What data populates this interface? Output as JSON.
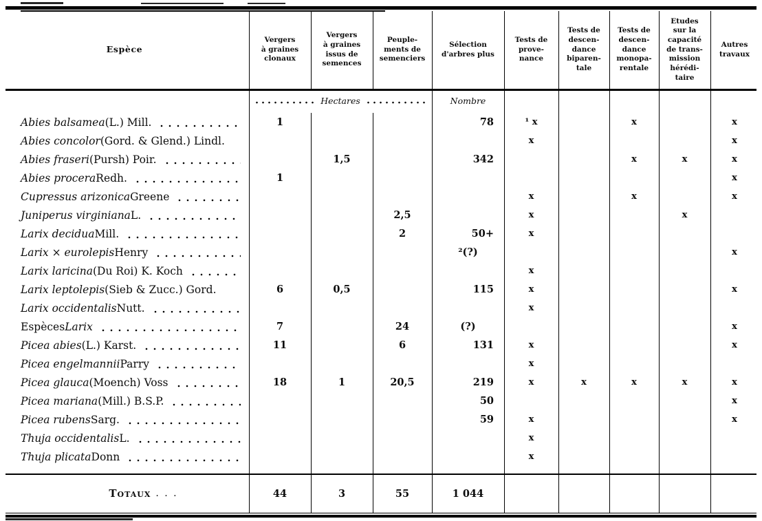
{
  "table": {
    "columns": [
      {
        "key": "espece",
        "label": "Espèce"
      },
      {
        "key": "vgc",
        "label": "Vergers\nà graines\nclonaux"
      },
      {
        "key": "vgs",
        "label": "Vergers\nà graines\nissus de\nsemences"
      },
      {
        "key": "ps",
        "label": "Peuple-\nments de\nsemenciers"
      },
      {
        "key": "sap",
        "label": "Sélection\nd'arbres plus"
      },
      {
        "key": "tp",
        "label": "Tests de\nprove-\nnance"
      },
      {
        "key": "tdb",
        "label": "Tests de\ndescen-\ndance\nbiparen-\ntale"
      },
      {
        "key": "tdm",
        "label": "Tests de\ndescen-\ndance\nmonopa-\nrentale"
      },
      {
        "key": "ect",
        "label": "Etudes\nsur la\ncapacité\nde trans-\nmission\nhérédi-\ntaire"
      },
      {
        "key": "at",
        "label": "Autres\ntravaux"
      }
    ],
    "subheader": {
      "hectares": "Hectares",
      "nombre": "Nombre"
    },
    "rows": [
      {
        "prefix": "",
        "italic": "Abies balsamea",
        "suffix": " (L.) Mill.",
        "leader": true,
        "vgc": "1",
        "vgs": "",
        "ps": "",
        "sap": "78",
        "tp": "¹ x",
        "tdb": "",
        "tdm": "x",
        "ect": "",
        "at": "x"
      },
      {
        "prefix": "",
        "italic": "Abies concolor",
        "suffix": " (Gord. & Glend.) Lindl.",
        "leader": false,
        "vgc": "",
        "vgs": "",
        "ps": "",
        "sap": "",
        "tp": "x",
        "tdb": "",
        "tdm": "",
        "ect": "",
        "at": "x"
      },
      {
        "prefix": "",
        "italic": "Abies fraseri",
        "suffix": " (Pursh) Poir.",
        "leader": true,
        "vgc": "",
        "vgs": "1,5",
        "ps": "",
        "sap": "342",
        "tp": "",
        "tdb": "",
        "tdm": "x",
        "ect": "x",
        "at": "x"
      },
      {
        "prefix": "",
        "italic": "Abies procera",
        "suffix": " Redh.",
        "leader": true,
        "vgc": "1",
        "vgs": "",
        "ps": "",
        "sap": "",
        "tp": "",
        "tdb": "",
        "tdm": "",
        "ect": "",
        "at": "x"
      },
      {
        "prefix": "",
        "italic": "Cupressus arizonica",
        "suffix": " Greene",
        "leader": true,
        "vgc": "",
        "vgs": "",
        "ps": "",
        "sap": "",
        "tp": "x",
        "tdb": "",
        "tdm": "x",
        "ect": "",
        "at": "x"
      },
      {
        "prefix": "",
        "italic": "Juniperus virginiana",
        "suffix": " L.",
        "leader": true,
        "vgc": "",
        "vgs": "",
        "ps": "2,5",
        "sap": "",
        "tp": "x",
        "tdb": "",
        "tdm": "",
        "ect": "x",
        "at": ""
      },
      {
        "prefix": "",
        "italic": "Larix decidua",
        "suffix": " Mill.",
        "leader": true,
        "vgc": "",
        "vgs": "",
        "ps": "2",
        "sap": "50+",
        "tp": "x",
        "tdb": "",
        "tdm": "",
        "ect": "",
        "at": ""
      },
      {
        "prefix": "",
        "italic": "Larix × eurolepis",
        "suffix": " Henry",
        "leader": true,
        "vgc": "",
        "vgs": "",
        "ps": "",
        "sap": "²(?)",
        "tp": "",
        "tdb": "",
        "tdm": "",
        "ect": "",
        "at": "x"
      },
      {
        "prefix": "",
        "italic": "Larix laricina",
        "suffix": " (Du Roi) K. Koch",
        "leader": true,
        "vgc": "",
        "vgs": "",
        "ps": "",
        "sap": "",
        "tp": "x",
        "tdb": "",
        "tdm": "",
        "ect": "",
        "at": ""
      },
      {
        "prefix": "",
        "italic": "Larix leptolepis",
        "suffix": " (Sieb & Zucc.) Gord.",
        "leader": false,
        "vgc": "6",
        "vgs": "0,5",
        "ps": "",
        "sap": "115",
        "tp": "x",
        "tdb": "",
        "tdm": "",
        "ect": "",
        "at": "x"
      },
      {
        "prefix": "",
        "italic": "Larix occidentalis",
        "suffix": " Nutt.",
        "leader": true,
        "vgc": "",
        "vgs": "",
        "ps": "",
        "sap": "",
        "tp": "x",
        "tdb": "",
        "tdm": "",
        "ect": "",
        "at": ""
      },
      {
        "prefix": "Espèces ",
        "italic": "Larix",
        "suffix": "",
        "leader": true,
        "vgc": "7",
        "vgs": "",
        "ps": "24",
        "sap": "(?)",
        "tp": "",
        "tdb": "",
        "tdm": "",
        "ect": "",
        "at": "x"
      },
      {
        "prefix": "",
        "italic": "Picea abies",
        "suffix": " (L.) Karst.",
        "leader": true,
        "vgc": "11",
        "vgs": "",
        "ps": "6",
        "sap": "131",
        "tp": "x",
        "tdb": "",
        "tdm": "",
        "ect": "",
        "at": "x"
      },
      {
        "prefix": "",
        "italic": "Picea engelmannii",
        "suffix": " Parry",
        "leader": true,
        "vgc": "",
        "vgs": "",
        "ps": "",
        "sap": "",
        "tp": "x",
        "tdb": "",
        "tdm": "",
        "ect": "",
        "at": ""
      },
      {
        "prefix": "",
        "italic": "Picea glauca",
        "suffix": " (Moench) Voss",
        "leader": true,
        "vgc": "18",
        "vgs": "1",
        "ps": "20,5",
        "sap": "219",
        "tp": "x",
        "tdb": "x",
        "tdm": "x",
        "ect": "x",
        "at": "x"
      },
      {
        "prefix": "",
        "italic": "Picea mariana",
        "suffix": " (Mill.) B.S.P.",
        "leader": true,
        "vgc": "",
        "vgs": "",
        "ps": "",
        "sap": "50",
        "tp": "",
        "tdb": "",
        "tdm": "",
        "ect": "",
        "at": "x"
      },
      {
        "prefix": "",
        "italic": "Picea rubens",
        "suffix": " Sarg.",
        "leader": true,
        "vgc": "",
        "vgs": "",
        "ps": "",
        "sap": "59",
        "tp": "x",
        "tdb": "",
        "tdm": "",
        "ect": "",
        "at": "x"
      },
      {
        "prefix": "",
        "italic": "Thuja occidentalis",
        "suffix": " L.",
        "leader": true,
        "vgc": "",
        "vgs": "",
        "ps": "",
        "sap": "",
        "tp": "x",
        "tdb": "",
        "tdm": "",
        "ect": "",
        "at": ""
      },
      {
        "prefix": "",
        "italic": "Thuja plicata",
        "suffix": " Donn",
        "leader": true,
        "vgc": "",
        "vgs": "",
        "ps": "",
        "sap": "",
        "tp": "x",
        "tdb": "",
        "tdm": "",
        "ect": "",
        "at": ""
      }
    ],
    "totals": {
      "label": "Totaux",
      "dots": ". . .",
      "vgc": "44",
      "vgs": "3",
      "ps": "55",
      "sap": "1 044",
      "tp": "",
      "tdb": "",
      "tdm": "",
      "ect": "",
      "at": ""
    }
  }
}
